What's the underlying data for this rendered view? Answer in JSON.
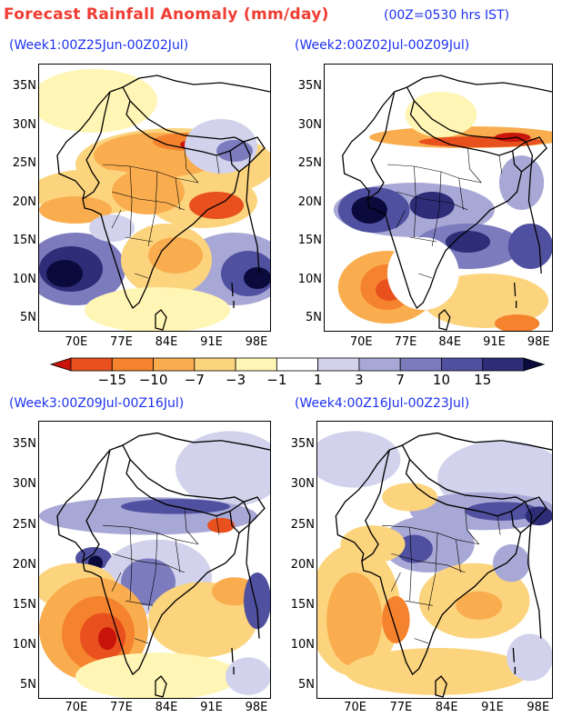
{
  "header": {
    "title": "Forecast Rainfall Anomaly (mm/day)",
    "time_note": "(00Z=0530 hrs IST)"
  },
  "panels": [
    {
      "label": "(Week1:00Z25Jun-00Z02Jul)",
      "pattern": "week1"
    },
    {
      "label": "(Week2:00Z02Jul-00Z09Jul)",
      "pattern": "week2"
    },
    {
      "label": "(Week3:00Z09Jul-00Z16Jul)",
      "pattern": "week3"
    },
    {
      "label": "(Week4:00Z16Jul-00Z23Jul)",
      "pattern": "week4"
    }
  ],
  "axes": {
    "lat_labels": [
      "35N",
      "30N",
      "25N",
      "20N",
      "15N",
      "10N",
      "5N"
    ],
    "lon_labels": [
      "70E",
      "77E",
      "84E",
      "91E",
      "98E"
    ]
  },
  "colorbar": {
    "labels": [
      "-15",
      "-10",
      "-7",
      "-3",
      "-1",
      "1",
      "3",
      "7",
      "10",
      "15"
    ],
    "colors": [
      "#c8140a",
      "#e8501e",
      "#f5822d",
      "#f9ad4f",
      "#fcd47e",
      "#fff5b4",
      "#ffffff",
      "#d2d2ec",
      "#a8a8d6",
      "#7b7bbe",
      "#5050a0",
      "#2d2d78",
      "#0a0a3c"
    ]
  },
  "colors": {
    "title": "#f03c32",
    "labels": "#1e32f0"
  }
}
